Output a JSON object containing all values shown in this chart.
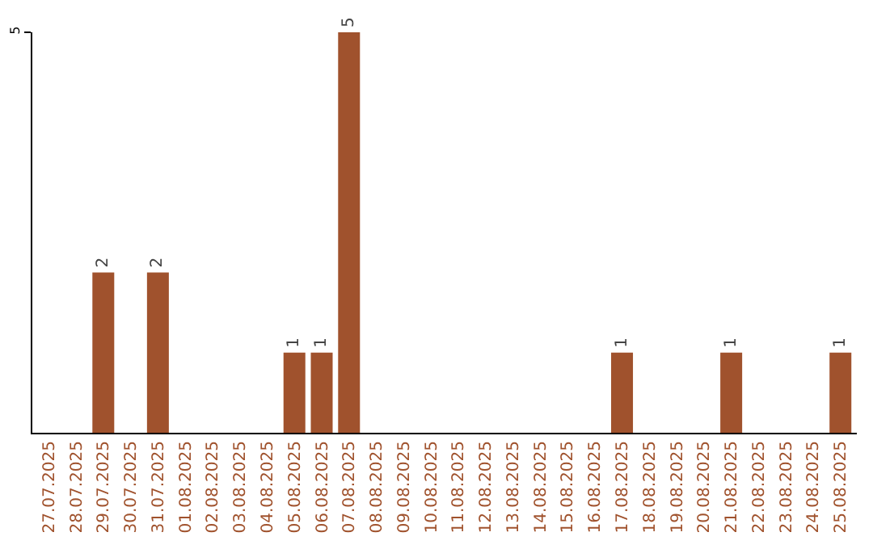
{
  "chart_data": {
    "type": "bar",
    "categories": [
      "27.07.2025",
      "28.07.2025",
      "29.07.2025",
      "30.07.2025",
      "31.07.2025",
      "01.08.2025",
      "02.08.2025",
      "03.08.2025",
      "04.08.2025",
      "05.08.2025",
      "06.08.2025",
      "07.08.2025",
      "08.08.2025",
      "09.08.2025",
      "10.08.2025",
      "11.08.2025",
      "12.08.2025",
      "13.08.2025",
      "14.08.2025",
      "15.08.2025",
      "16.08.2025",
      "17.08.2025",
      "18.08.2025",
      "19.08.2025",
      "20.08.2025",
      "21.08.2025",
      "22.08.2025",
      "23.08.2025",
      "24.08.2025",
      "25.08.2025"
    ],
    "values": [
      0,
      0,
      2,
      0,
      2,
      0,
      0,
      0,
      0,
      1,
      1,
      5,
      0,
      0,
      0,
      0,
      0,
      0,
      0,
      0,
      0,
      1,
      0,
      0,
      0,
      1,
      0,
      0,
      0,
      1
    ],
    "value_labels": [
      null,
      null,
      "2",
      null,
      "2",
      null,
      null,
      null,
      null,
      "1",
      "1",
      "5",
      null,
      null,
      null,
      null,
      null,
      null,
      null,
      null,
      null,
      "1",
      null,
      null,
      null,
      "1",
      null,
      null,
      null,
      "1"
    ],
    "color": "#a0522d",
    "ylim": [
      0,
      5
    ],
    "yticks": [
      5
    ],
    "grid": false,
    "legend": false
  }
}
